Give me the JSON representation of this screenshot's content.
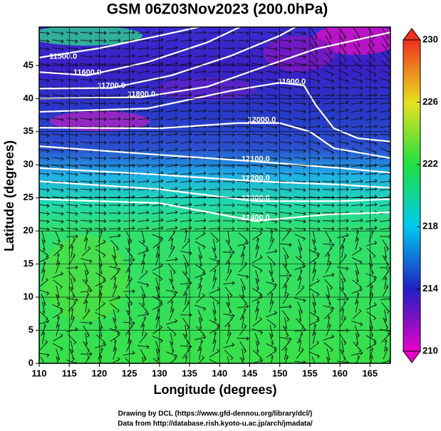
{
  "chart_data": {
    "type": "contour-map",
    "title": "GSM 06Z03Nov2023 (200.0hPa)",
    "x_label": "Longitude (degrees)",
    "y_label": "Latitude  (degrees)",
    "xlim": [
      110,
      168.4
    ],
    "ylim": [
      0,
      50.8
    ],
    "xticks": [
      110,
      115,
      120,
      125,
      130,
      135,
      140,
      145,
      150,
      155,
      160,
      165
    ],
    "yticks": [
      0,
      5,
      10,
      15,
      20,
      25,
      30,
      35,
      40,
      45
    ],
    "grid": true,
    "colorbar": {
      "lim": [
        210,
        230
      ],
      "ticks": [
        210,
        214,
        218,
        222,
        226,
        230
      ],
      "colors": [
        "#e800c8",
        "#2020c0",
        "#00c8f0",
        "#20e040",
        "#e8e020",
        "#f03020"
      ]
    },
    "contours": [
      {
        "label": "11500.0"
      },
      {
        "label": "11600.0"
      },
      {
        "label": "11700.0"
      },
      {
        "label": "11800.0"
      },
      {
        "label": "11900.0"
      },
      {
        "label": "12000.0"
      },
      {
        "label": "12100.0"
      },
      {
        "label": "12200.0"
      },
      {
        "label": "12300.0"
      },
      {
        "label": "12400.0"
      }
    ],
    "credits": [
      "Drawing by DCL (https://www.gfd-dennou.org/library/dcl/)",
      "Data from http://database.rish.kyoto-u.ac.jp/arch/jmadata/"
    ]
  }
}
